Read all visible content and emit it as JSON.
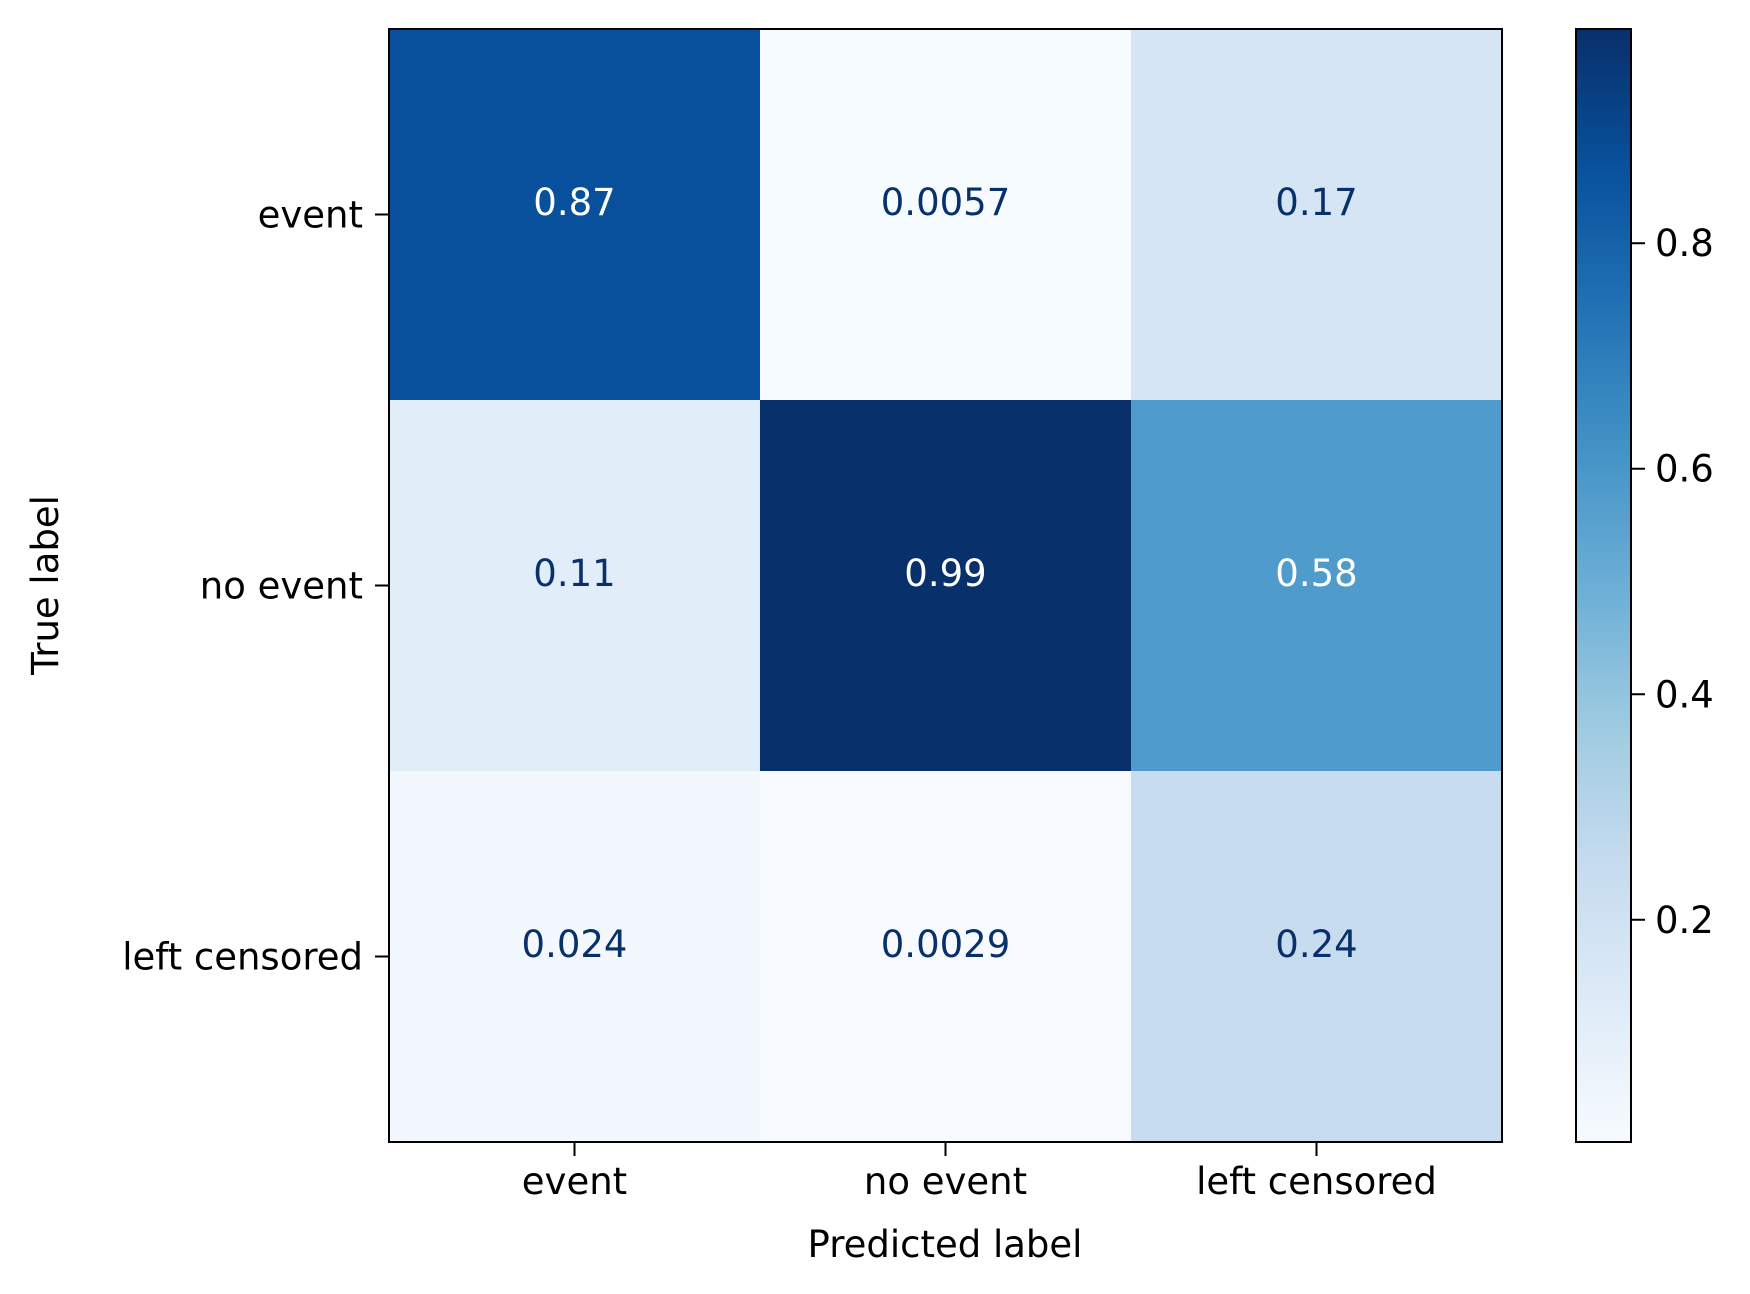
{
  "chart_data": {
    "type": "heatmap",
    "title": "",
    "xlabel": "Predicted label",
    "ylabel": "True label",
    "x_categories": [
      "event",
      "no event",
      "left censored"
    ],
    "y_categories": [
      "event",
      "no event",
      "left censored"
    ],
    "values": [
      [
        0.87,
        0.0057,
        0.17
      ],
      [
        0.11,
        0.99,
        0.58
      ],
      [
        0.024,
        0.0029,
        0.24
      ]
    ],
    "cell_labels": [
      [
        "0.87",
        "0.0057",
        "0.17"
      ],
      [
        "0.11",
        "0.99",
        "0.58"
      ],
      [
        "0.024",
        "0.0029",
        "0.24"
      ]
    ],
    "colormap": "Blues",
    "colorbar": {
      "vmin": 0.0029,
      "vmax": 0.99,
      "ticks": [
        0.2,
        0.4,
        0.6,
        0.8
      ],
      "tick_labels": [
        "0.2",
        "0.4",
        "0.6",
        "0.8"
      ]
    },
    "text_colors": {
      "light": "#ffffff",
      "dark": "#08306b"
    }
  }
}
